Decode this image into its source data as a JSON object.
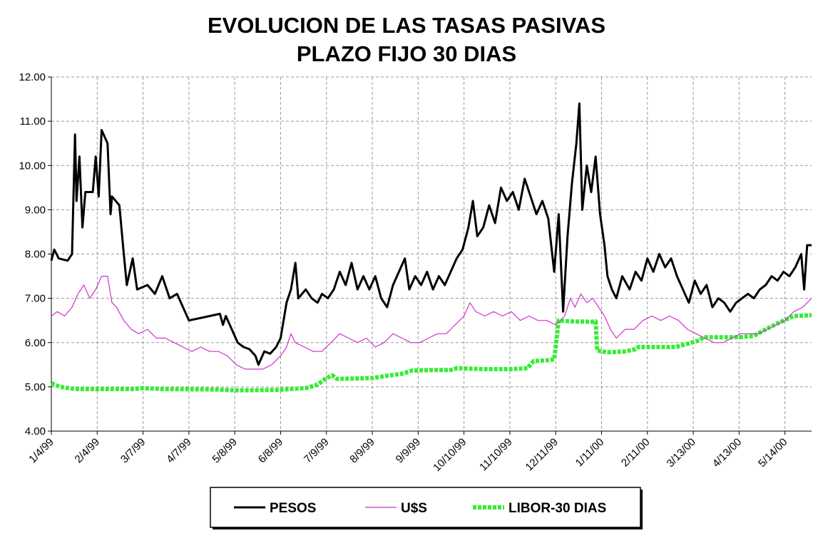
{
  "chart_data": {
    "type": "line",
    "title_line1": "EVOLUCION DE LAS TASAS PASIVAS",
    "title_line2": "PLAZO FIJO 30 DIAS",
    "xlabel": "",
    "ylabel": "",
    "ylim": [
      4.0,
      12.0
    ],
    "y_ticks": [
      "4.00",
      "5.00",
      "6.00",
      "7.00",
      "8.00",
      "9.00",
      "10.00",
      "11.00",
      "12.00"
    ],
    "xlim": [
      "1/4/99",
      "6/1/00"
    ],
    "x_ticks": [
      "1/4/99",
      "2/4/99",
      "3/7/99",
      "4/7/99",
      "5/8/99",
      "6/8/99",
      "7/9/99",
      "8/9/99",
      "9/9/99",
      "10/10/99",
      "11/10/99",
      "12/11/99",
      "1/11/00",
      "2/11/00",
      "3/13/00",
      "4/13/00",
      "5/14/00"
    ],
    "grid": true,
    "legend_position": "bottom",
    "series": [
      {
        "name": "PESOS",
        "color": "#000000",
        "style": "solid",
        "points": [
          [
            "1/4/99",
            7.85
          ],
          [
            "1/6/99",
            8.1
          ],
          [
            "1/9/99",
            7.9
          ],
          [
            "1/15/99",
            7.85
          ],
          [
            "1/18/99",
            8.0
          ],
          [
            "1/20/99",
            10.7
          ],
          [
            "1/21/99",
            9.2
          ],
          [
            "1/23/99",
            10.2
          ],
          [
            "1/25/99",
            8.6
          ],
          [
            "1/27/99",
            9.4
          ],
          [
            "2/1/99",
            9.4
          ],
          [
            "2/3/99",
            10.2
          ],
          [
            "2/5/99",
            9.3
          ],
          [
            "2/7/99",
            10.8
          ],
          [
            "2/11/99",
            10.5
          ],
          [
            "2/13/99",
            8.9
          ],
          [
            "2/14/99",
            9.3
          ],
          [
            "2/19/99",
            9.1
          ],
          [
            "2/22/99",
            8.0
          ],
          [
            "2/24/99",
            7.3
          ],
          [
            "2/28/99",
            7.9
          ],
          [
            "3/3/99",
            7.2
          ],
          [
            "3/10/99",
            7.3
          ],
          [
            "3/15/99",
            7.1
          ],
          [
            "3/20/99",
            7.5
          ],
          [
            "3/25/99",
            7.0
          ],
          [
            "3/30/99",
            7.1
          ],
          [
            "4/3/99",
            6.8
          ],
          [
            "4/7/99",
            6.5
          ],
          [
            "4/14/99",
            6.55
          ],
          [
            "4/21/99",
            6.6
          ],
          [
            "4/28/99",
            6.65
          ],
          [
            "4/30/99",
            6.4
          ],
          [
            "5/2/99",
            6.6
          ],
          [
            "5/6/99",
            6.3
          ],
          [
            "5/10/99",
            6.0
          ],
          [
            "5/14/99",
            5.9
          ],
          [
            "5/18/99",
            5.85
          ],
          [
            "5/22/99",
            5.7
          ],
          [
            "5/24/99",
            5.5
          ],
          [
            "5/28/99",
            5.8
          ],
          [
            "6/1/99",
            5.75
          ],
          [
            "6/5/99",
            5.9
          ],
          [
            "6/8/99",
            6.1
          ],
          [
            "6/12/99",
            6.9
          ],
          [
            "6/15/99",
            7.2
          ],
          [
            "6/18/99",
            7.8
          ],
          [
            "6/20/99",
            7.0
          ],
          [
            "6/25/99",
            7.2
          ],
          [
            "6/29/99",
            7.0
          ],
          [
            "7/3/99",
            6.9
          ],
          [
            "7/6/99",
            7.1
          ],
          [
            "7/10/99",
            7.0
          ],
          [
            "7/14/99",
            7.2
          ],
          [
            "7/18/99",
            7.6
          ],
          [
            "7/22/99",
            7.3
          ],
          [
            "7/26/99",
            7.8
          ],
          [
            "7/30/99",
            7.2
          ],
          [
            "8/3/99",
            7.5
          ],
          [
            "8/7/99",
            7.2
          ],
          [
            "8/11/99",
            7.5
          ],
          [
            "8/15/99",
            7.0
          ],
          [
            "8/19/99",
            6.8
          ],
          [
            "8/23/99",
            7.3
          ],
          [
            "8/27/99",
            7.6
          ],
          [
            "8/31/99",
            7.9
          ],
          [
            "9/3/99",
            7.2
          ],
          [
            "9/7/99",
            7.5
          ],
          [
            "9/11/99",
            7.3
          ],
          [
            "9/15/99",
            7.6
          ],
          [
            "9/19/99",
            7.2
          ],
          [
            "9/23/99",
            7.5
          ],
          [
            "9/27/99",
            7.3
          ],
          [
            "10/1/99",
            7.6
          ],
          [
            "10/5/99",
            7.9
          ],
          [
            "10/9/99",
            8.1
          ],
          [
            "10/13/99",
            8.6
          ],
          [
            "10/16/99",
            9.2
          ],
          [
            "10/19/99",
            8.4
          ],
          [
            "10/23/99",
            8.6
          ],
          [
            "10/27/99",
            9.1
          ],
          [
            "10/31/99",
            8.7
          ],
          [
            "11/4/99",
            9.5
          ],
          [
            "11/8/99",
            9.2
          ],
          [
            "11/12/99",
            9.4
          ],
          [
            "11/16/99",
            9.0
          ],
          [
            "11/20/99",
            9.7
          ],
          [
            "11/24/99",
            9.3
          ],
          [
            "11/28/99",
            8.9
          ],
          [
            "12/2/99",
            9.2
          ],
          [
            "12/6/99",
            8.8
          ],
          [
            "12/10/99",
            7.6
          ],
          [
            "12/13/99",
            8.9
          ],
          [
            "12/16/99",
            6.7
          ],
          [
            "12/19/99",
            8.4
          ],
          [
            "12/22/99",
            9.6
          ],
          [
            "12/25/99",
            10.5
          ],
          [
            "12/27/99",
            11.4
          ],
          [
            "12/29/99",
            9.0
          ],
          [
            "1/1/00",
            10.0
          ],
          [
            "1/4/00",
            9.4
          ],
          [
            "1/7/00",
            10.2
          ],
          [
            "1/10/00",
            8.9
          ],
          [
            "1/13/00",
            8.2
          ],
          [
            "1/15/00",
            7.5
          ],
          [
            "1/18/00",
            7.2
          ],
          [
            "1/21/00",
            7.0
          ],
          [
            "1/25/00",
            7.5
          ],
          [
            "1/30/00",
            7.2
          ],
          [
            "2/3/00",
            7.6
          ],
          [
            "2/7/00",
            7.4
          ],
          [
            "2/11/00",
            7.9
          ],
          [
            "2/15/00",
            7.6
          ],
          [
            "2/19/00",
            8.0
          ],
          [
            "2/23/00",
            7.7
          ],
          [
            "2/27/00",
            7.9
          ],
          [
            "3/2/00",
            7.5
          ],
          [
            "3/6/00",
            7.2
          ],
          [
            "3/10/00",
            6.9
          ],
          [
            "3/14/00",
            7.4
          ],
          [
            "3/18/00",
            7.1
          ],
          [
            "3/22/00",
            7.3
          ],
          [
            "3/26/00",
            6.8
          ],
          [
            "3/30/00",
            7.0
          ],
          [
            "4/3/00",
            6.9
          ],
          [
            "4/7/00",
            6.7
          ],
          [
            "4/11/00",
            6.9
          ],
          [
            "4/15/00",
            7.0
          ],
          [
            "4/19/00",
            7.1
          ],
          [
            "4/23/00",
            7.0
          ],
          [
            "4/27/00",
            7.2
          ],
          [
            "5/1/00",
            7.3
          ],
          [
            "5/5/00",
            7.5
          ],
          [
            "5/9/00",
            7.4
          ],
          [
            "5/13/00",
            7.6
          ],
          [
            "5/17/00",
            7.5
          ],
          [
            "5/21/00",
            7.7
          ],
          [
            "5/25/00",
            8.0
          ],
          [
            "5/27/00",
            7.2
          ],
          [
            "5/29/00",
            8.2
          ],
          [
            "6/1/00",
            8.2
          ]
        ]
      },
      {
        "name": "U$S",
        "color": "#cc33cc",
        "style": "thin",
        "points": [
          [
            "1/4/99",
            6.6
          ],
          [
            "1/8/99",
            6.7
          ],
          [
            "1/13/99",
            6.6
          ],
          [
            "1/18/99",
            6.8
          ],
          [
            "1/22/99",
            7.1
          ],
          [
            "1/26/99",
            7.3
          ],
          [
            "1/30/99",
            7.0
          ],
          [
            "2/3/99",
            7.2
          ],
          [
            "2/7/99",
            7.5
          ],
          [
            "2/11/99",
            7.5
          ],
          [
            "2/14/99",
            6.9
          ],
          [
            "2/17/99",
            6.8
          ],
          [
            "2/22/99",
            6.5
          ],
          [
            "2/27/99",
            6.3
          ],
          [
            "3/4/99",
            6.2
          ],
          [
            "3/10/99",
            6.3
          ],
          [
            "3/16/99",
            6.1
          ],
          [
            "3/22/99",
            6.1
          ],
          [
            "3/28/99",
            6.0
          ],
          [
            "4/3/99",
            5.9
          ],
          [
            "4/9/99",
            5.8
          ],
          [
            "4/15/99",
            5.9
          ],
          [
            "4/21/99",
            5.8
          ],
          [
            "4/27/99",
            5.8
          ],
          [
            "5/3/99",
            5.7
          ],
          [
            "5/9/99",
            5.5
          ],
          [
            "5/15/99",
            5.4
          ],
          [
            "5/21/99",
            5.4
          ],
          [
            "5/27/99",
            5.4
          ],
          [
            "6/2/99",
            5.5
          ],
          [
            "6/8/99",
            5.7
          ],
          [
            "6/12/99",
            5.9
          ],
          [
            "6/15/99",
            6.2
          ],
          [
            "6/18/99",
            6.0
          ],
          [
            "6/24/99",
            5.9
          ],
          [
            "6/30/99",
            5.8
          ],
          [
            "7/6/99",
            5.8
          ],
          [
            "7/12/99",
            6.0
          ],
          [
            "7/18/99",
            6.2
          ],
          [
            "7/24/99",
            6.1
          ],
          [
            "7/30/99",
            6.0
          ],
          [
            "8/5/99",
            6.1
          ],
          [
            "8/11/99",
            5.9
          ],
          [
            "8/17/99",
            6.0
          ],
          [
            "8/23/99",
            6.2
          ],
          [
            "8/29/99",
            6.1
          ],
          [
            "9/4/99",
            6.0
          ],
          [
            "9/10/99",
            6.0
          ],
          [
            "9/16/99",
            6.1
          ],
          [
            "9/22/99",
            6.2
          ],
          [
            "9/28/99",
            6.2
          ],
          [
            "10/4/99",
            6.4
          ],
          [
            "10/10/99",
            6.6
          ],
          [
            "10/14/99",
            6.9
          ],
          [
            "10/18/99",
            6.7
          ],
          [
            "10/24/99",
            6.6
          ],
          [
            "10/30/99",
            6.7
          ],
          [
            "11/5/99",
            6.6
          ],
          [
            "11/11/99",
            6.7
          ],
          [
            "11/17/99",
            6.5
          ],
          [
            "11/23/99",
            6.6
          ],
          [
            "11/29/99",
            6.5
          ],
          [
            "12/5/99",
            6.5
          ],
          [
            "12/11/99",
            6.4
          ],
          [
            "12/17/99",
            6.6
          ],
          [
            "12/21/99",
            7.0
          ],
          [
            "12/24/99",
            6.8
          ],
          [
            "12/28/99",
            7.1
          ],
          [
            "1/1/00",
            6.9
          ],
          [
            "1/5/00",
            7.0
          ],
          [
            "1/9/00",
            6.8
          ],
          [
            "1/13/00",
            6.6
          ],
          [
            "1/17/00",
            6.3
          ],
          [
            "1/21/00",
            6.1
          ],
          [
            "1/27/00",
            6.3
          ],
          [
            "2/2/00",
            6.3
          ],
          [
            "2/8/00",
            6.5
          ],
          [
            "2/14/00",
            6.6
          ],
          [
            "2/20/00",
            6.5
          ],
          [
            "2/26/00",
            6.6
          ],
          [
            "3/3/00",
            6.5
          ],
          [
            "3/9/00",
            6.3
          ],
          [
            "3/15/00",
            6.2
          ],
          [
            "3/21/00",
            6.1
          ],
          [
            "3/27/00",
            6.0
          ],
          [
            "4/2/00",
            6.0
          ],
          [
            "4/8/00",
            6.1
          ],
          [
            "4/14/00",
            6.2
          ],
          [
            "4/20/00",
            6.2
          ],
          [
            "4/26/00",
            6.2
          ],
          [
            "5/2/00",
            6.3
          ],
          [
            "5/8/00",
            6.4
          ],
          [
            "5/14/00",
            6.5
          ],
          [
            "5/20/00",
            6.7
          ],
          [
            "5/26/00",
            6.8
          ],
          [
            "6/1/00",
            7.0
          ]
        ]
      },
      {
        "name": "LIBOR-30 DIAS",
        "color": "#33ee33",
        "style": "dotted-thick",
        "points": [
          [
            "1/4/99",
            5.08
          ],
          [
            "1/10/99",
            5.0
          ],
          [
            "1/20/99",
            4.95
          ],
          [
            "3/1/99",
            4.95
          ],
          [
            "3/7/99",
            4.97
          ],
          [
            "3/20/99",
            4.95
          ],
          [
            "4/25/99",
            4.94
          ],
          [
            "5/8/99",
            4.92
          ],
          [
            "6/5/99",
            4.93
          ],
          [
            "6/25/99",
            4.97
          ],
          [
            "7/3/99",
            5.05
          ],
          [
            "7/9/99",
            5.2
          ],
          [
            "7/13/99",
            5.26
          ],
          [
            "7/16/99",
            5.18
          ],
          [
            "8/9/99",
            5.2
          ],
          [
            "8/19/99",
            5.25
          ],
          [
            "8/30/99",
            5.3
          ],
          [
            "9/5/99",
            5.37
          ],
          [
            "9/20/99",
            5.38
          ],
          [
            "10/1/99",
            5.38
          ],
          [
            "10/5/99",
            5.42
          ],
          [
            "10/25/99",
            5.4
          ],
          [
            "11/10/99",
            5.4
          ],
          [
            "11/22/99",
            5.42
          ],
          [
            "11/26/99",
            5.58
          ],
          [
            "12/5/99",
            5.6
          ],
          [
            "12/10/99",
            5.62
          ],
          [
            "12/13/99",
            6.5
          ],
          [
            "12/20/99",
            6.48
          ],
          [
            "1/4/00",
            6.47
          ],
          [
            "1/7/00",
            6.48
          ],
          [
            "1/8/00",
            5.82
          ],
          [
            "1/15/00",
            5.78
          ],
          [
            "1/27/00",
            5.8
          ],
          [
            "2/3/00",
            5.85
          ],
          [
            "2/5/00",
            5.9
          ],
          [
            "3/1/00",
            5.9
          ],
          [
            "3/10/00",
            5.98
          ],
          [
            "3/17/00",
            6.05
          ],
          [
            "3/20/00",
            6.12
          ],
          [
            "4/13/00",
            6.12
          ],
          [
            "4/23/00",
            6.15
          ],
          [
            "5/1/00",
            6.3
          ],
          [
            "5/10/00",
            6.45
          ],
          [
            "5/20/00",
            6.6
          ],
          [
            "6/1/00",
            6.62
          ]
        ]
      }
    ]
  }
}
